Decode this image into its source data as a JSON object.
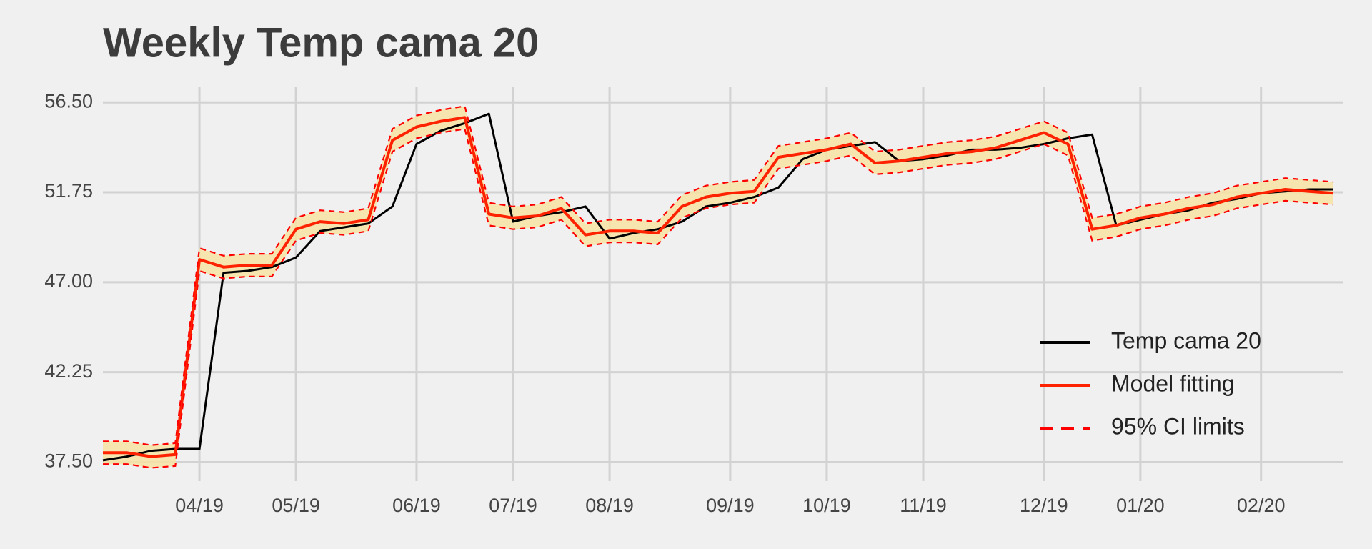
{
  "chart_data": {
    "type": "line",
    "title": "Weekly Temp cama 20",
    "categories": [
      null,
      null,
      null,
      null,
      "04/19",
      null,
      null,
      null,
      "05/19",
      null,
      null,
      null,
      null,
      "06/19",
      null,
      null,
      null,
      "07/19",
      null,
      null,
      null,
      "08/19",
      null,
      null,
      null,
      null,
      "09/19",
      null,
      null,
      null,
      "10/19",
      null,
      null,
      null,
      "11/19",
      null,
      null,
      null,
      null,
      "12/19",
      null,
      null,
      null,
      "01/20",
      null,
      null,
      null,
      null,
      "02/20",
      null,
      null,
      null
    ],
    "series": [
      {
        "name": "Temp cama 20",
        "color": "#000000",
        "values": [
          37.6,
          37.8,
          38.1,
          38.2,
          38.2,
          47.5,
          47.6,
          47.8,
          48.3,
          49.7,
          49.9,
          50.1,
          51.0,
          54.3,
          55.0,
          55.4,
          55.9,
          50.2,
          50.5,
          50.7,
          51.0,
          49.3,
          49.6,
          49.8,
          50.2,
          51.0,
          51.2,
          51.5,
          52.0,
          53.5,
          54.0,
          54.2,
          54.4,
          53.4,
          53.5,
          53.7,
          54.0,
          54.0,
          54.1,
          54.3,
          54.6,
          54.8,
          50.0,
          50.3,
          50.6,
          50.8,
          51.2,
          51.4,
          51.7,
          51.8,
          51.9,
          51.9
        ]
      },
      {
        "name": "Model fitting",
        "color": "#ff2200",
        "values": [
          38.0,
          38.0,
          37.8,
          37.9,
          48.2,
          47.8,
          47.9,
          47.9,
          49.8,
          50.2,
          50.1,
          50.3,
          54.5,
          55.2,
          55.5,
          55.7,
          50.6,
          50.4,
          50.5,
          50.9,
          49.5,
          49.7,
          49.7,
          49.6,
          51.0,
          51.5,
          51.7,
          51.8,
          53.6,
          53.8,
          54.0,
          54.3,
          53.3,
          53.4,
          53.6,
          53.8,
          53.9,
          54.1,
          54.5,
          54.9,
          54.3,
          49.8,
          50.0,
          50.4,
          50.6,
          50.9,
          51.1,
          51.5,
          51.7,
          51.9,
          51.8,
          51.7
        ]
      },
      {
        "name": "95% CI limits",
        "color": "#ff0000",
        "dashed": true,
        "band_color": "#f7e3a3",
        "upper": [
          38.6,
          38.6,
          38.4,
          38.5,
          48.8,
          48.4,
          48.5,
          48.5,
          50.4,
          50.8,
          50.7,
          50.9,
          55.1,
          55.8,
          56.1,
          56.3,
          51.2,
          51.0,
          51.1,
          51.5,
          50.1,
          50.3,
          50.3,
          50.2,
          51.6,
          52.1,
          52.3,
          52.4,
          54.2,
          54.4,
          54.6,
          54.9,
          53.9,
          54.0,
          54.2,
          54.4,
          54.5,
          54.7,
          55.1,
          55.5,
          54.9,
          50.4,
          50.6,
          51.0,
          51.2,
          51.5,
          51.7,
          52.1,
          52.3,
          52.5,
          52.4,
          52.3
        ],
        "lower": [
          37.4,
          37.4,
          37.2,
          37.3,
          47.6,
          47.2,
          47.3,
          47.3,
          49.2,
          49.6,
          49.5,
          49.7,
          53.9,
          54.6,
          54.9,
          55.1,
          50.0,
          49.8,
          49.9,
          50.3,
          48.9,
          49.1,
          49.1,
          49.0,
          50.4,
          50.9,
          51.1,
          51.2,
          53.0,
          53.2,
          53.4,
          53.7,
          52.7,
          52.8,
          53.0,
          53.2,
          53.3,
          53.5,
          53.9,
          54.3,
          53.7,
          49.2,
          49.4,
          49.8,
          50.0,
          50.3,
          50.5,
          50.9,
          51.1,
          51.3,
          51.2,
          51.1
        ]
      }
    ],
    "ylim": [
      36.5,
      57.3
    ],
    "yticks": [
      {
        "value": 37.5,
        "label": "37.50"
      },
      {
        "value": 42.25,
        "label": "42.25"
      },
      {
        "value": 47,
        "label": "47.00"
      },
      {
        "value": 51.75,
        "label": "51.75"
      },
      {
        "value": 56.5,
        "label": "56.50"
      }
    ],
    "grid": true,
    "legend": "right"
  }
}
